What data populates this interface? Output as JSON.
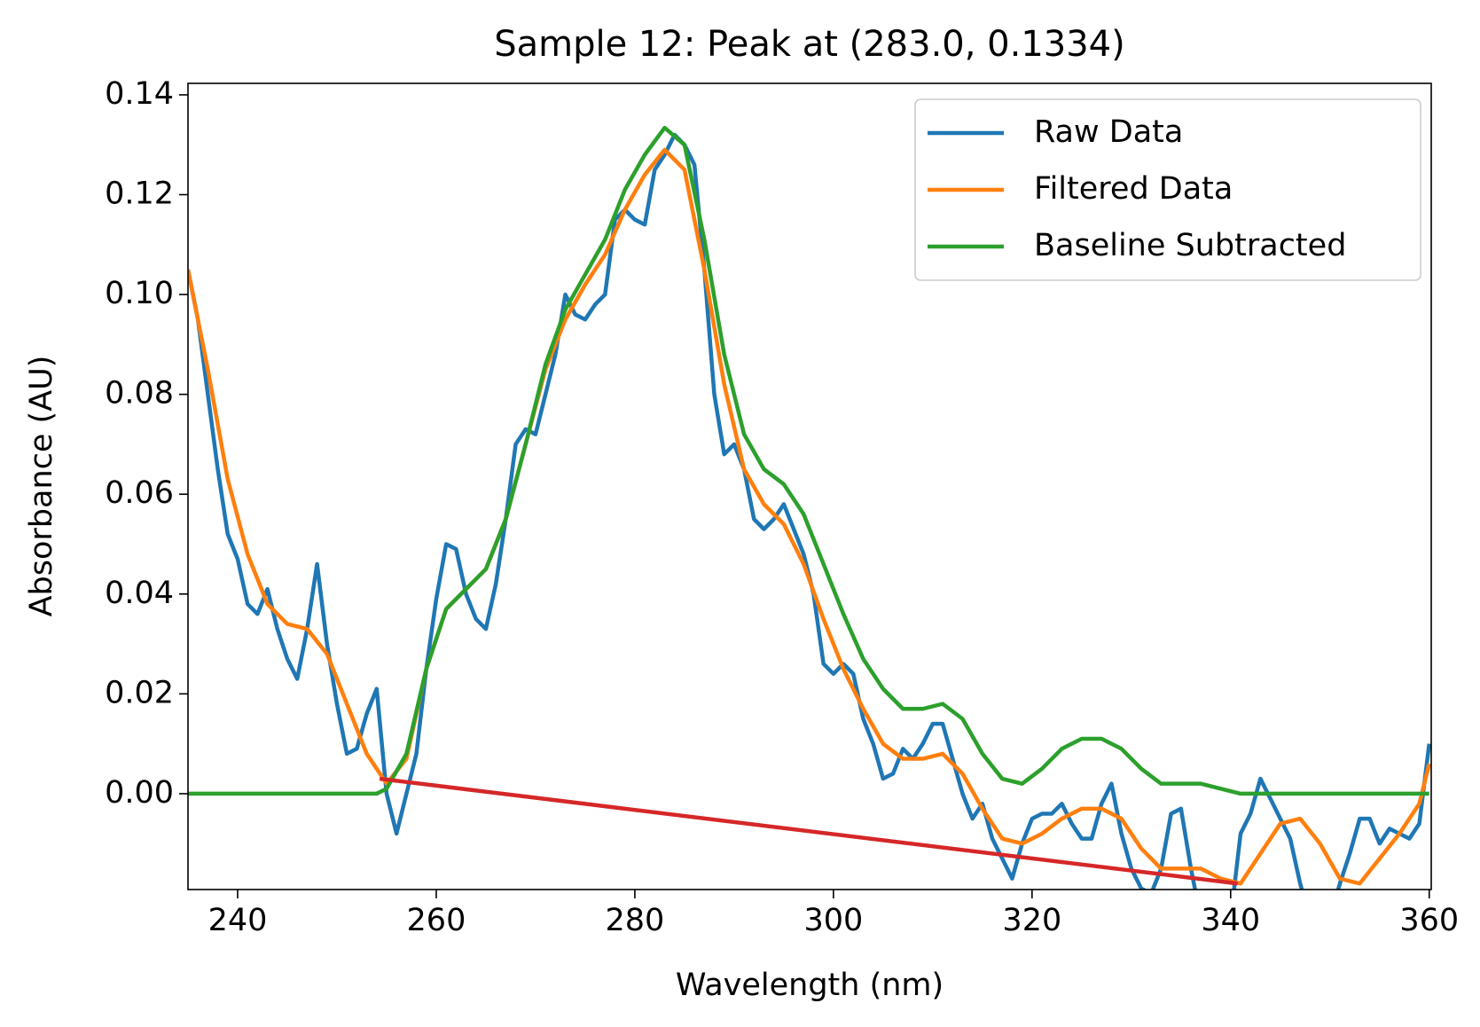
{
  "chart_data": {
    "type": "line",
    "title": "Sample 12: Peak at (283.0, 0.1334)",
    "x_label": "Wavelength (nm)",
    "y_label": "Absorbance (AU)",
    "xlim": [
      235,
      360.2
    ],
    "ylim": [
      -0.0192,
      0.1423
    ],
    "xticks": [
      240,
      260,
      280,
      300,
      320,
      340,
      360
    ],
    "yticks": [
      {
        "value": 0,
        "label": "0.00"
      },
      {
        "value": 0.02,
        "label": "0.02"
      },
      {
        "value": 0.04,
        "label": "0.04"
      },
      {
        "value": 0.06,
        "label": "0.06"
      },
      {
        "value": 0.08,
        "label": "0.08"
      },
      {
        "value": 0.1,
        "label": "0.10"
      },
      {
        "value": 0.12,
        "label": "0.12"
      },
      {
        "value": 0.14,
        "label": "0.14"
      }
    ],
    "legend": "upper right",
    "series": [
      {
        "name": "Raw Data",
        "color": "#1f77b4",
        "x": [
          235,
          236,
          237,
          238,
          239,
          240,
          241,
          242,
          243,
          244,
          245,
          246,
          247,
          248,
          249,
          250,
          251,
          252,
          253,
          254,
          255,
          256,
          257,
          258,
          259,
          260,
          261,
          262,
          263,
          264,
          265,
          266,
          267,
          268,
          269,
          270,
          271,
          272,
          273,
          274,
          275,
          276,
          277,
          278,
          279,
          280,
          281,
          282,
          283,
          284,
          285,
          286,
          287,
          288,
          289,
          290,
          291,
          292,
          293,
          294,
          295,
          296,
          297,
          298,
          299,
          300,
          301,
          302,
          303,
          304,
          305,
          306,
          307,
          308,
          309,
          310,
          311,
          312,
          313,
          314,
          315,
          316,
          317,
          318,
          319,
          320,
          321,
          322,
          323,
          324,
          325,
          326,
          327,
          328,
          329,
          330,
          331,
          332,
          333,
          334,
          335,
          336,
          337,
          338,
          339,
          340,
          341,
          342,
          343,
          344,
          345,
          346,
          347,
          348,
          349,
          350,
          351,
          352,
          353,
          354,
          355,
          356,
          357,
          358,
          359,
          360
        ],
        "values": [
          0.105,
          0.095,
          0.08,
          0.065,
          0.052,
          0.047,
          0.038,
          0.036,
          0.041,
          0.033,
          0.027,
          0.023,
          0.033,
          0.046,
          0.03,
          0.018,
          0.008,
          0.009,
          0.016,
          0.021,
          0.0,
          -0.008,
          0.0,
          0.008,
          0.025,
          0.039,
          0.05,
          0.049,
          0.04,
          0.035,
          0.033,
          0.042,
          0.055,
          0.07,
          0.073,
          0.072,
          0.08,
          0.088,
          0.1,
          0.096,
          0.095,
          0.098,
          0.1,
          0.115,
          0.117,
          0.115,
          0.114,
          0.125,
          0.128,
          0.132,
          0.13,
          0.126,
          0.105,
          0.08,
          0.068,
          0.07,
          0.065,
          0.055,
          0.053,
          0.055,
          0.058,
          0.053,
          0.048,
          0.04,
          0.026,
          0.024,
          0.026,
          0.024,
          0.015,
          0.01,
          0.003,
          0.004,
          0.009,
          0.007,
          0.01,
          0.014,
          0.014,
          0.007,
          0.0,
          -0.005,
          -0.002,
          -0.009,
          -0.013,
          -0.017,
          -0.01,
          -0.005,
          -0.004,
          -0.004,
          -0.002,
          -0.006,
          -0.009,
          -0.009,
          -0.002,
          0.002,
          -0.008,
          -0.015,
          -0.019,
          -0.02,
          -0.015,
          -0.004,
          -0.003,
          -0.015,
          -0.025,
          -0.03,
          -0.03,
          -0.025,
          -0.008,
          -0.004,
          0.003,
          -0.001,
          -0.005,
          -0.009,
          -0.018,
          -0.025,
          -0.03,
          -0.025,
          -0.018,
          -0.012,
          -0.005,
          -0.005,
          -0.01,
          -0.007,
          -0.008,
          -0.009,
          -0.006,
          0.01
        ]
      },
      {
        "name": "Filtered Data",
        "color": "#ff7f0e",
        "x": [
          235,
          237,
          239,
          241,
          243,
          245,
          247,
          249,
          251,
          253,
          255,
          257,
          259,
          261,
          263,
          265,
          267,
          269,
          271,
          273,
          275,
          277,
          279,
          281,
          283,
          285,
          287,
          289,
          291,
          293,
          295,
          297,
          299,
          301,
          303,
          305,
          307,
          309,
          311,
          313,
          315,
          317,
          319,
          321,
          323,
          325,
          327,
          329,
          331,
          333,
          335,
          337,
          339,
          341,
          343,
          345,
          347,
          349,
          351,
          353,
          355,
          357,
          359,
          360
        ],
        "values": [
          0.105,
          0.085,
          0.063,
          0.048,
          0.038,
          0.034,
          0.033,
          0.028,
          0.018,
          0.008,
          0.002,
          0.007,
          0.025,
          0.037,
          0.041,
          0.045,
          0.055,
          0.07,
          0.085,
          0.095,
          0.102,
          0.108,
          0.117,
          0.124,
          0.129,
          0.125,
          0.105,
          0.082,
          0.065,
          0.058,
          0.054,
          0.046,
          0.035,
          0.025,
          0.017,
          0.01,
          0.007,
          0.007,
          0.008,
          0.004,
          -0.003,
          -0.009,
          -0.01,
          -0.008,
          -0.005,
          -0.003,
          -0.003,
          -0.005,
          -0.011,
          -0.015,
          -0.015,
          -0.015,
          -0.017,
          -0.018,
          -0.012,
          -0.006,
          -0.005,
          -0.01,
          -0.017,
          -0.018,
          -0.013,
          -0.008,
          -0.002,
          0.006
        ]
      },
      {
        "name": "Baseline Subtracted",
        "color": "#2ca02c",
        "x": [
          235,
          254,
          255,
          257,
          259,
          261,
          263,
          265,
          267,
          269,
          271,
          273,
          275,
          277,
          279,
          281,
          283,
          285,
          287,
          289,
          291,
          293,
          295,
          297,
          299,
          301,
          303,
          305,
          307,
          309,
          311,
          313,
          315,
          317,
          319,
          321,
          323,
          325,
          327,
          329,
          331,
          333,
          335,
          337,
          339,
          341,
          360
        ],
        "values": [
          0,
          0,
          0.001,
          0.008,
          0.025,
          0.037,
          0.041,
          0.045,
          0.055,
          0.07,
          0.086,
          0.097,
          0.104,
          0.111,
          0.121,
          0.128,
          0.1334,
          0.13,
          0.111,
          0.088,
          0.072,
          0.065,
          0.062,
          0.056,
          0.046,
          0.036,
          0.027,
          0.021,
          0.017,
          0.017,
          0.018,
          0.015,
          0.008,
          0.003,
          0.002,
          0.005,
          0.009,
          0.011,
          0.011,
          0.009,
          0.005,
          0.002,
          0.002,
          0.002,
          0.001,
          0,
          0
        ]
      }
    ],
    "baseline": {
      "color": "#d62728",
      "x": [
        254.3,
        340.7
      ],
      "values": [
        0.003,
        -0.018
      ]
    }
  }
}
